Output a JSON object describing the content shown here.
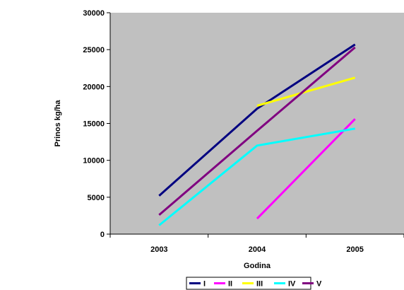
{
  "chart_data": {
    "type": "line",
    "title": "",
    "xlabel": "Godina",
    "ylabel": "Prinos kg/ha",
    "categories": [
      "2003",
      "2004",
      "2005"
    ],
    "ylim": [
      0,
      30000
    ],
    "yticks": [
      "0",
      "5000",
      "10000",
      "15000",
      "20000",
      "25000",
      "30000"
    ],
    "grid": false,
    "legend_position": "bottom",
    "colors": {
      "page_background": "#ffffff",
      "plot_background": "#c0c0c0",
      "axis": "#000000"
    },
    "series": [
      {
        "name": "I",
        "color": "#000080",
        "values": [
          5200,
          17000,
          25700
        ]
      },
      {
        "name": "II",
        "color": "#ff00ff",
        "values": [
          null,
          2100,
          15600
        ]
      },
      {
        "name": "III",
        "color": "#ffff00",
        "values": [
          null,
          17400,
          21200
        ]
      },
      {
        "name": "IV",
        "color": "#00ffff",
        "values": [
          1200,
          12000,
          14300
        ]
      },
      {
        "name": "V",
        "color": "#800080",
        "values": [
          2600,
          14000,
          25300
        ]
      }
    ]
  }
}
